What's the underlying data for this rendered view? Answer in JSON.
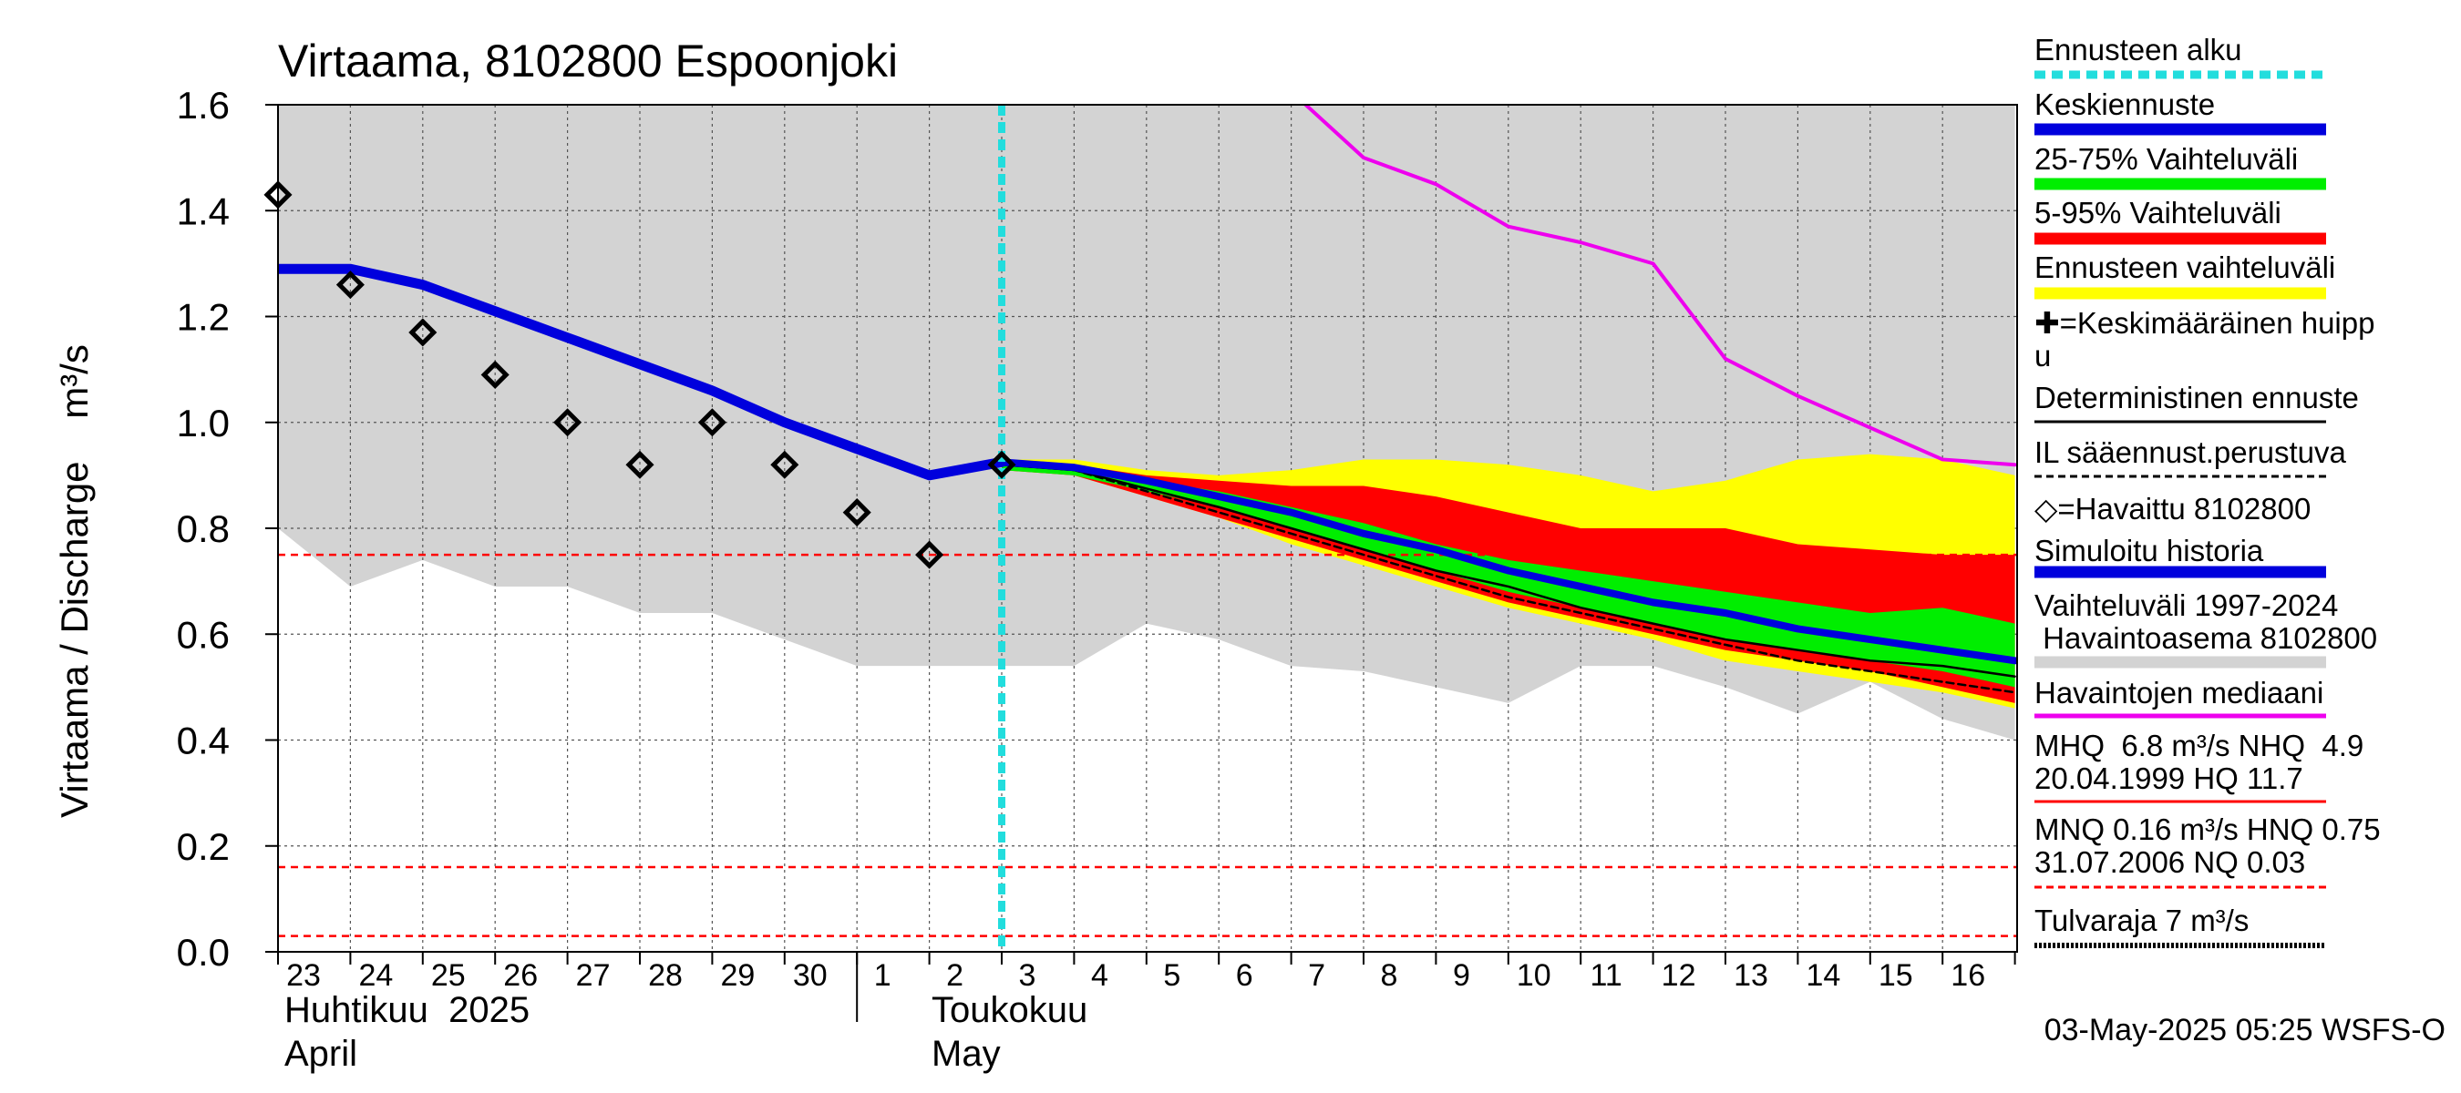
{
  "chart_data": {
    "type": "area",
    "title": "Virtaama, 8102800 Espoonjoki",
    "ylabel": "Virtaama / Discharge    m³/s",
    "ylim": [
      0,
      1.6
    ],
    "yticks": [
      "0.0",
      "0.2",
      "0.4",
      "0.6",
      "0.8",
      "1.0",
      "1.2",
      "1.4",
      "1.6"
    ],
    "grid": true,
    "x_day_labels": [
      "23",
      "24",
      "25",
      "26",
      "27",
      "28",
      "29",
      "30",
      "1",
      "2",
      "3",
      "4",
      "5",
      "6",
      "7",
      "8",
      "9",
      "10",
      "11",
      "12",
      "13",
      "14",
      "15",
      "16"
    ],
    "month_labels": [
      {
        "fi": "Huhtikuu  2025",
        "en": "April"
      },
      {
        "fi": "Toukokuu",
        "en": "May"
      }
    ],
    "forecast_start_day": 10,
    "thresholds": [
      {
        "name": "HNQ",
        "value": 0.75
      },
      {
        "name": "MNQ",
        "value": 0.16
      },
      {
        "name": "NQ",
        "value": 0.03
      }
    ],
    "series": [
      {
        "name": "Vaihteluväli 1997-2024 Havaintoasema 8102800",
        "kind": "band",
        "x": [
          -0.1,
          0,
          1,
          2,
          3,
          4,
          5,
          6,
          7,
          8,
          9,
          10,
          11,
          12,
          13,
          14,
          15,
          16,
          17,
          18,
          19,
          20,
          21,
          22,
          23,
          24
        ],
        "upper": [
          1.6,
          1.6,
          1.6,
          1.6,
          1.6,
          1.6,
          1.6,
          1.6,
          1.6,
          1.6,
          1.6,
          1.6,
          1.6,
          1.6,
          1.6,
          1.6,
          1.6,
          1.6,
          1.6,
          1.6,
          1.6,
          1.6,
          1.6,
          1.6,
          1.6,
          1.6
        ],
        "lower": [
          0.83,
          0.8,
          0.69,
          0.74,
          0.69,
          0.69,
          0.64,
          0.64,
          0.59,
          0.54,
          0.54,
          0.54,
          0.54,
          0.62,
          0.59,
          0.54,
          0.53,
          0.5,
          0.47,
          0.54,
          0.54,
          0.5,
          0.45,
          0.51,
          0.44,
          0.4
        ]
      },
      {
        "name": "Ennusteen vaihteluväli",
        "kind": "band",
        "x": [
          10,
          11,
          12,
          13,
          14,
          15,
          16,
          17,
          18,
          19,
          20,
          21,
          22,
          23,
          24
        ],
        "upper": [
          0.93,
          0.93,
          0.91,
          0.9,
          0.91,
          0.93,
          0.93,
          0.92,
          0.9,
          0.87,
          0.89,
          0.93,
          0.94,
          0.93,
          0.9
        ],
        "lower": [
          0.91,
          0.9,
          0.86,
          0.82,
          0.77,
          0.73,
          0.69,
          0.65,
          0.62,
          0.59,
          0.55,
          0.53,
          0.51,
          0.49,
          0.46
        ]
      },
      {
        "name": "5-95% Vaihteluväli",
        "kind": "band",
        "x": [
          10,
          11,
          12,
          13,
          14,
          15,
          16,
          17,
          18,
          19,
          20,
          21,
          22,
          23,
          24
        ],
        "upper": [
          0.92,
          0.92,
          0.9,
          0.89,
          0.88,
          0.88,
          0.86,
          0.83,
          0.8,
          0.8,
          0.8,
          0.77,
          0.76,
          0.75,
          0.75
        ],
        "lower": [
          0.91,
          0.9,
          0.86,
          0.82,
          0.78,
          0.74,
          0.7,
          0.66,
          0.63,
          0.6,
          0.57,
          0.55,
          0.53,
          0.5,
          0.47
        ]
      },
      {
        "name": "25-75% Vaihteluväli",
        "kind": "band",
        "x": [
          10,
          11,
          12,
          13,
          14,
          15,
          16,
          17,
          18,
          19,
          20,
          21,
          22,
          23,
          24
        ],
        "upper": [
          0.92,
          0.91,
          0.89,
          0.87,
          0.84,
          0.81,
          0.77,
          0.74,
          0.72,
          0.7,
          0.68,
          0.66,
          0.64,
          0.65,
          0.62
        ],
        "lower": [
          0.91,
          0.9,
          0.87,
          0.84,
          0.8,
          0.76,
          0.72,
          0.68,
          0.65,
          0.62,
          0.59,
          0.57,
          0.55,
          0.53,
          0.5
        ]
      },
      {
        "name": "Havaintojen mediaani",
        "kind": "line",
        "x": [
          14.2,
          15,
          16,
          17,
          18,
          19,
          20,
          21,
          22,
          23,
          24
        ],
        "y": [
          1.6,
          1.5,
          1.45,
          1.37,
          1.34,
          1.3,
          1.12,
          1.05,
          0.99,
          0.93,
          0.92
        ]
      },
      {
        "name": "Simuloitu historia",
        "kind": "line",
        "x": [
          -0.1,
          1,
          2,
          3,
          4,
          5,
          6,
          7,
          8,
          9,
          10
        ],
        "y": [
          1.29,
          1.29,
          1.26,
          1.21,
          1.16,
          1.11,
          1.06,
          1.0,
          0.95,
          0.9,
          0.925
        ]
      },
      {
        "name": "Keskiennuste",
        "kind": "line",
        "x": [
          10,
          11,
          12,
          13,
          14,
          15,
          16,
          17,
          18,
          19,
          20,
          21,
          22,
          23,
          24
        ],
        "y": [
          0.925,
          0.915,
          0.89,
          0.86,
          0.83,
          0.79,
          0.76,
          0.72,
          0.69,
          0.66,
          0.64,
          0.61,
          0.59,
          0.57,
          0.55
        ]
      },
      {
        "name": "Deterministinen ennuste",
        "kind": "line",
        "x": [
          10,
          11,
          12,
          13,
          14,
          15,
          16,
          17,
          18,
          19,
          20,
          21,
          22,
          23,
          24
        ],
        "y": [
          0.92,
          0.91,
          0.875,
          0.84,
          0.8,
          0.76,
          0.72,
          0.69,
          0.65,
          0.62,
          0.59,
          0.57,
          0.55,
          0.54,
          0.52
        ]
      },
      {
        "name": "IL sääennust.perustuva",
        "kind": "dashed",
        "x": [
          10,
          11,
          12,
          13,
          14,
          15,
          16,
          17,
          18,
          19,
          20,
          21,
          22,
          23,
          24
        ],
        "y": [
          0.92,
          0.91,
          0.87,
          0.83,
          0.79,
          0.75,
          0.71,
          0.67,
          0.64,
          0.61,
          0.58,
          0.55,
          0.53,
          0.51,
          0.49
        ]
      },
      {
        "name": "Havaittu 8102800",
        "kind": "points",
        "x": [
          0,
          1,
          2,
          3,
          4,
          5,
          6,
          7,
          8,
          9,
          10
        ],
        "y": [
          1.43,
          1.26,
          1.17,
          1.09,
          1.0,
          0.92,
          1.0,
          0.92,
          0.83,
          0.75,
          0.92
        ]
      }
    ],
    "legend": {
      "placement": "right",
      "entries": [
        {
          "label": "Ennusteen alku",
          "color": "#22dddd",
          "style": "dotted"
        },
        {
          "label": "Keskiennuste",
          "color": "#0000dd",
          "style": "thick"
        },
        {
          "label": "25-75% Vaihteluväli",
          "color": "#00ee00",
          "style": "thick"
        },
        {
          "label": "5-95% Vaihteluväli",
          "color": "#ff0000",
          "style": "thick"
        },
        {
          "label": "Ennusteen vaihteluväli",
          "color": "#ffff00",
          "style": "thick"
        },
        {
          "label": "✚=Keskimääräinen huipp",
          "label2": "u",
          "color": "",
          "style": "none"
        },
        {
          "label": "Deterministinen ennuste",
          "color": "#000000",
          "style": "thin"
        },
        {
          "label": "IL sääennust.perustuva",
          "color": "#000000",
          "style": "dashed"
        },
        {
          "label": "◇=Havaittu 8102800",
          "color": "",
          "style": "none"
        },
        {
          "label": "Simuloitu historia",
          "color": "#0000dd",
          "style": "thick"
        },
        {
          "label": "Vaihteluväli 1997-2024",
          "label2": " Havaintoasema 8102800",
          "color": "#d3d3d3",
          "style": "thick"
        },
        {
          "label": "Havaintojen mediaani",
          "color": "#ee00ee",
          "style": "medium"
        },
        {
          "label": "MHQ  6.8 m³/s NHQ  4.9",
          "label2": "20.04.1999 HQ 11.7",
          "color": "#ff0000",
          "style": "thin"
        },
        {
          "label": "MNQ 0.16 m³/s HNQ 0.75",
          "label2": "31.07.2006 NQ 0.03",
          "color": "#ff0000",
          "style": "dashed"
        },
        {
          "label": "Tulvaraja 7 m³/s",
          "color": "#000000",
          "style": "dotted"
        }
      ]
    },
    "footer": "03-May-2025 05:25 WSFS-O"
  },
  "colors": {
    "history_band": "#d3d3d3",
    "forecast_range": "#ffff00",
    "band_5_95": "#ff0000",
    "band_25_75": "#00ee00",
    "mean_forecast": "#0000dd",
    "median": "#ee00ee",
    "forecast_start": "#22dddd",
    "threshold": "#ff0000"
  }
}
